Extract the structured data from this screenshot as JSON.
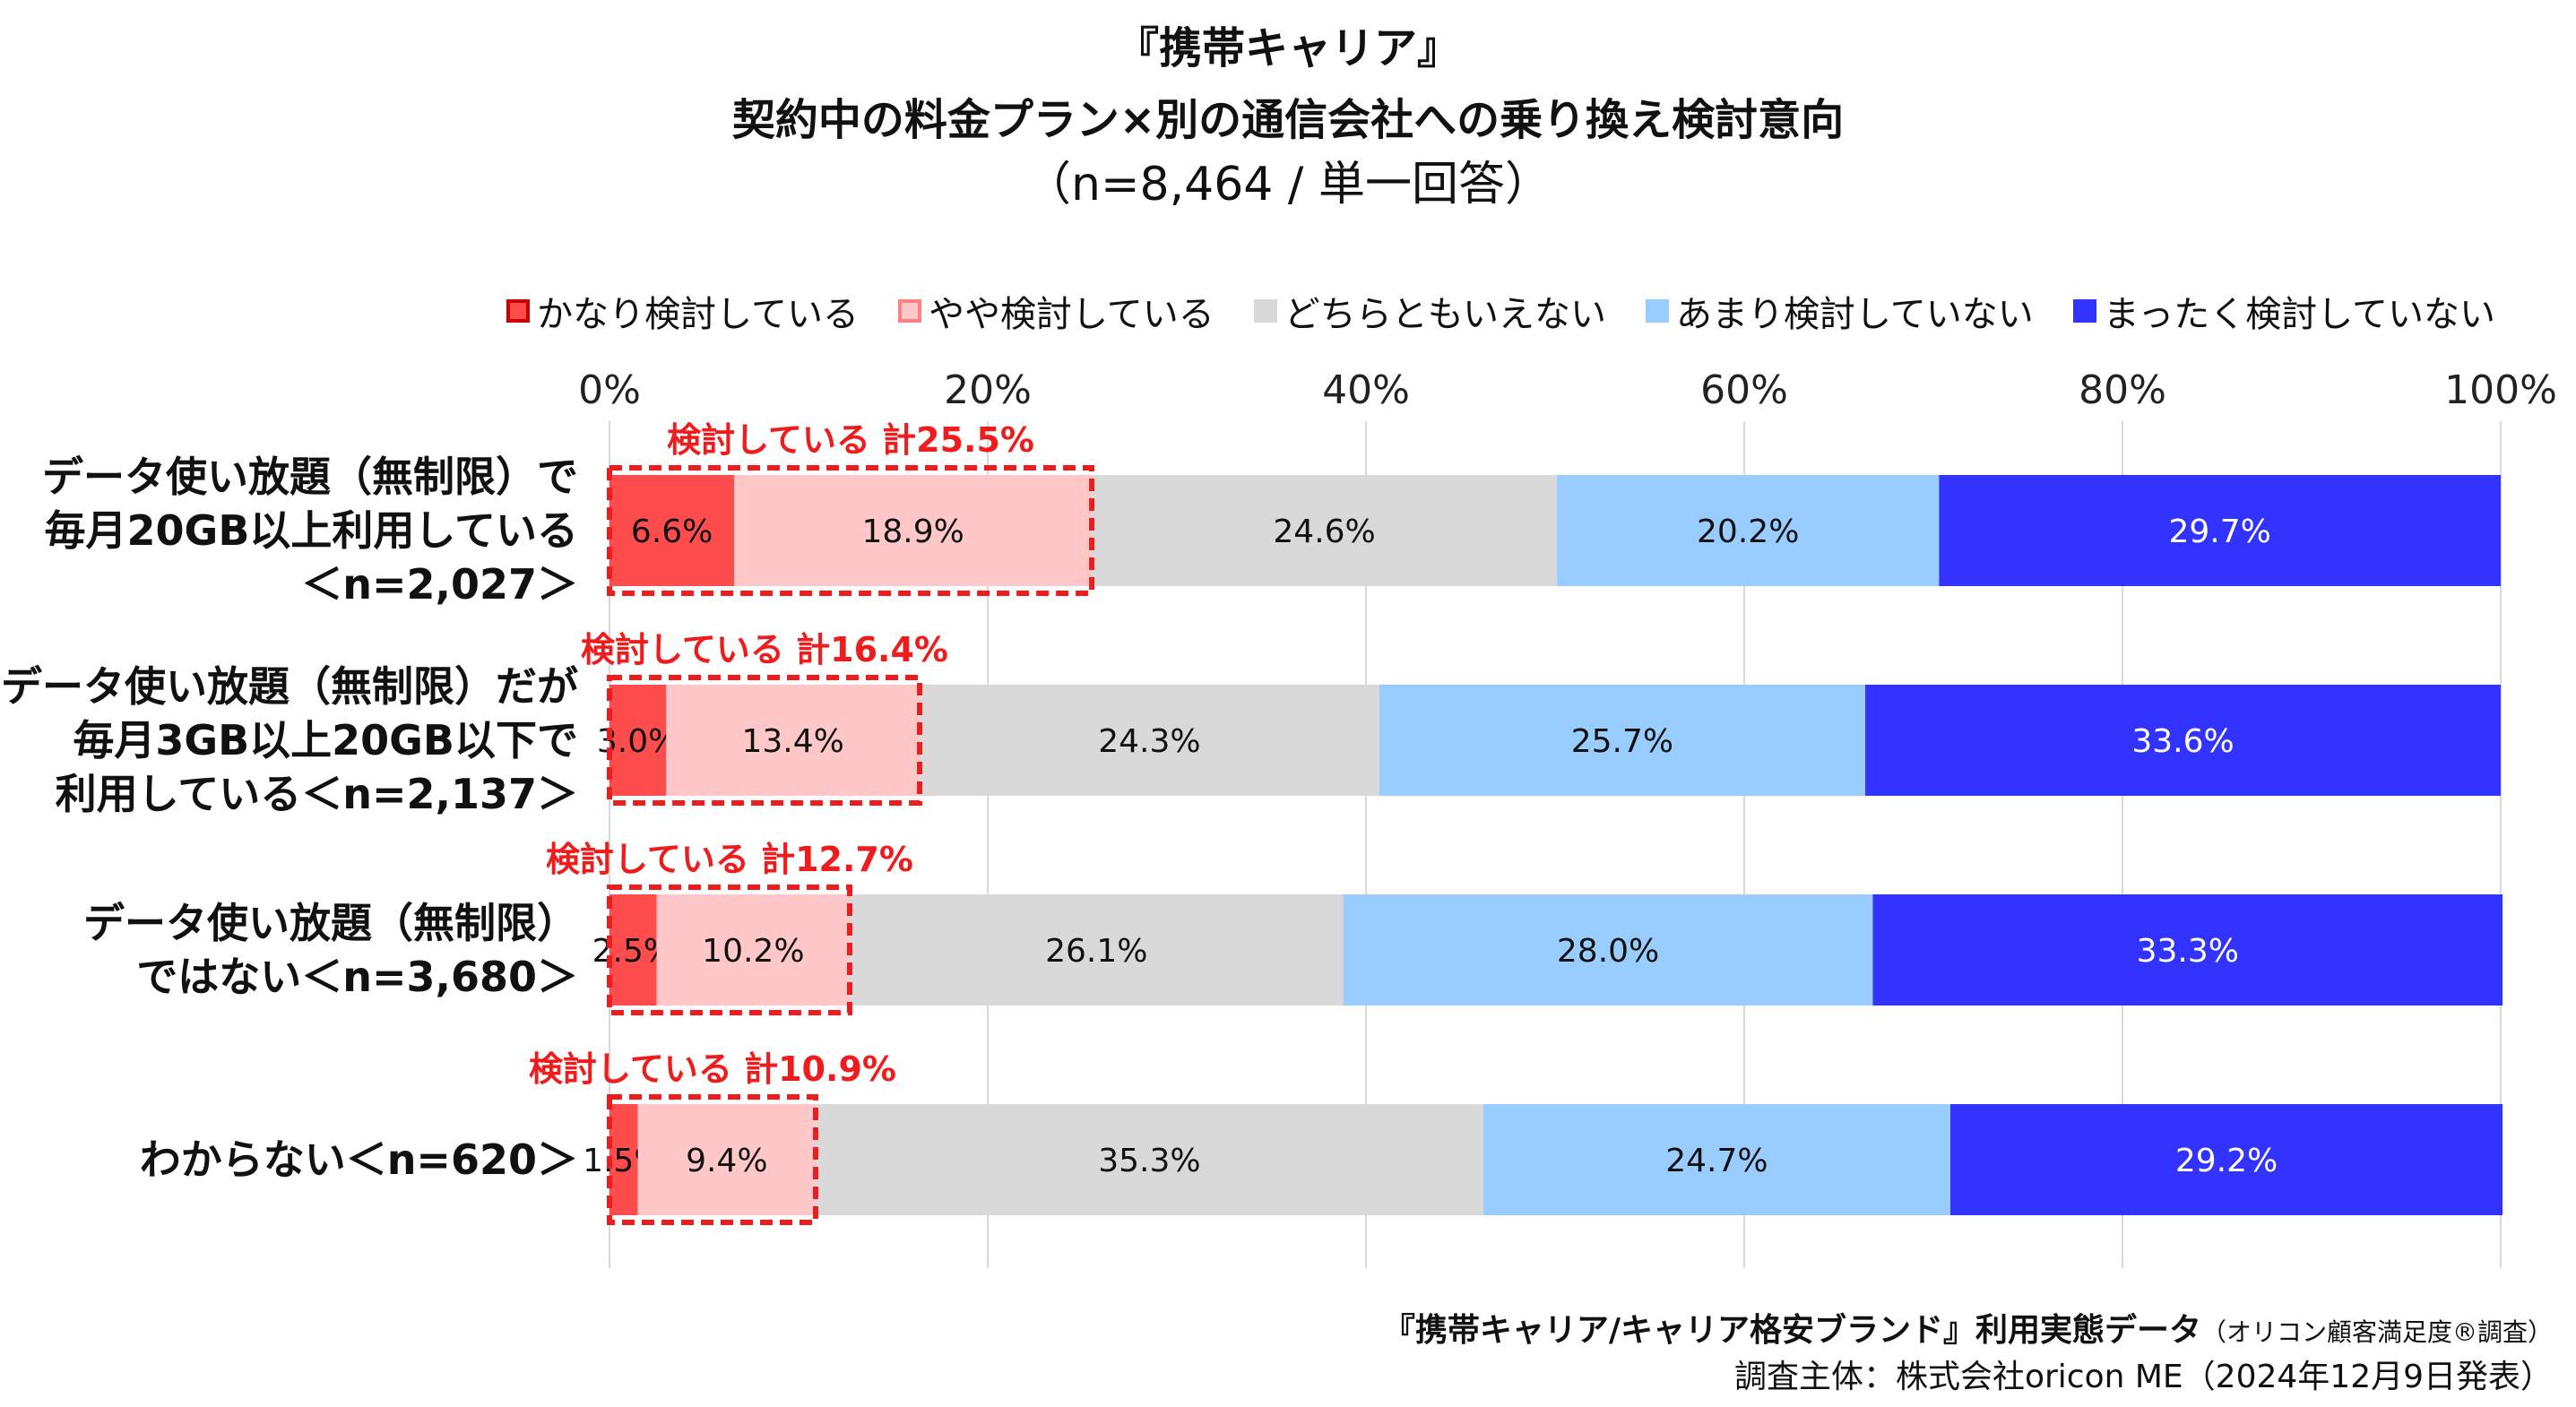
{
  "chart_data": {
    "type": "bar",
    "orientation": "horizontal",
    "stacked": true,
    "title": "『携帯キャリア』",
    "subtitle": "契約中の料金プラン×別の通信会社への乗り換え検討意向",
    "subtitle2": "（n=8,464 / 単一回答）",
    "xlim": [
      0,
      100
    ],
    "xticks": [
      "0%",
      "20%",
      "40%",
      "60%",
      "80%",
      "100%"
    ],
    "grid": true,
    "legend_position": "top-right",
    "categories": [
      {
        "line1": "データ使い放題（無制限）で",
        "line2": "毎月20GB以上利用している",
        "line3": "＜n=2,027＞"
      },
      {
        "line1": "データ使い放題（無制限）だが",
        "line2": "毎月3GB以上20GB以下で",
        "line3": "利用している＜n=2,137＞"
      },
      {
        "line1": "データ使い放題（無制限）",
        "line2": "ではない＜n=3,680＞"
      },
      {
        "line1": "わからない＜n=620＞"
      }
    ],
    "series": [
      {
        "name": "かなり検討している",
        "color": "#ff4d4d",
        "values": [
          6.6,
          3.0,
          2.5,
          1.5
        ],
        "labels": [
          "6.6%",
          "3.0%",
          "2.5%",
          "1.5%"
        ]
      },
      {
        "name": "やや検討している",
        "color": "#ffc7c7",
        "values": [
          18.9,
          13.4,
          10.2,
          9.4
        ],
        "labels": [
          "18.9%",
          "13.4%",
          "10.2%",
          "9.4%"
        ]
      },
      {
        "name": "どちらともいえない",
        "color": "#d9d9d9",
        "values": [
          24.6,
          24.3,
          26.1,
          35.3
        ],
        "labels": [
          "24.6%",
          "24.3%",
          "26.1%",
          "35.3%"
        ]
      },
      {
        "name": "あまり検討していない",
        "color": "#99ccff",
        "values": [
          20.2,
          25.7,
          28.0,
          24.7
        ],
        "labels": [
          "20.2%",
          "25.7%",
          "28.0%",
          "24.7%"
        ]
      },
      {
        "name": "まったく検討していない",
        "color": "#3333ff",
        "values": [
          29.7,
          33.6,
          33.3,
          29.2
        ],
        "labels": [
          "29.7%",
          "33.6%",
          "33.3%",
          "29.2%"
        ]
      }
    ],
    "annotations": [
      "検討している 計25.5%",
      "検討している 計16.4%",
      "検討している 計12.7%",
      "検討している 計10.9%"
    ],
    "annotation_color": "#ee1c1c"
  },
  "footer": {
    "source_main": "『携帯キャリア/キャリア格安ブランド』利用実態データ",
    "source_sub": "（オリコン顧客満足度®調査）",
    "organizer": "調査主体：株式会社oricon ME（2024年12月9日発表）"
  }
}
